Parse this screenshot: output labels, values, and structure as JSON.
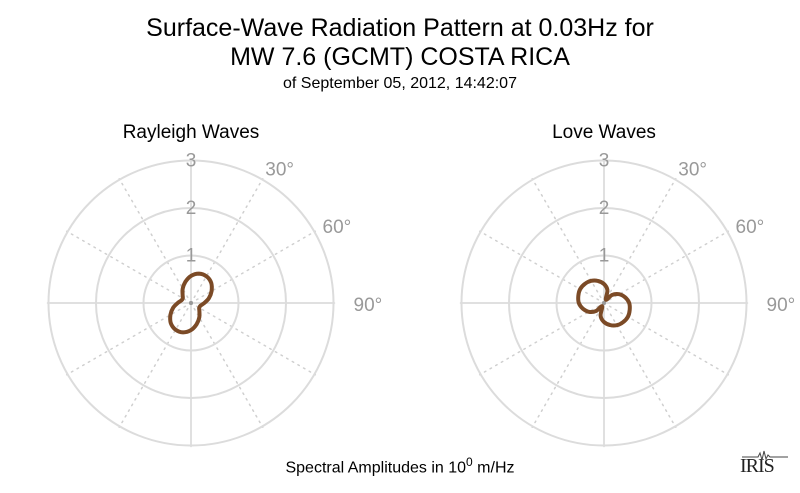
{
  "title_line1": "Surface-Wave Radiation Pattern at 0.03Hz for",
  "title_line2": "MW 7.6 (GCMT) COSTA RICA",
  "subtitle": "of September 05, 2012, 14:42:07",
  "footer_prefix": "Spectral Amplitudes in 10",
  "footer_exp": "0",
  "footer_suffix": " m/Hz",
  "logo_text": "IRIS",
  "chart_data": [
    {
      "type": "polar-line",
      "title": "Rayleigh Waves",
      "radial_ticks": [
        "1",
        "2",
        "3"
      ],
      "rlim": [
        0,
        3
      ],
      "angle_ticks": [
        "30°",
        "60°",
        "90°"
      ],
      "angle_zero": "top",
      "angle_direction": "clockwise",
      "grid": true,
      "color": "#7b4a26",
      "azimuth_deg": [
        0,
        15,
        30,
        45,
        60,
        75,
        90,
        105,
        120,
        135,
        150,
        165,
        180,
        195,
        210,
        225,
        240,
        255,
        270,
        285,
        300,
        315,
        330,
        345
      ],
      "amplitude": [
        0.57,
        0.64,
        0.65,
        0.6,
        0.5,
        0.39,
        0.28,
        0.21,
        0.2,
        0.25,
        0.35,
        0.46,
        0.57,
        0.64,
        0.65,
        0.6,
        0.5,
        0.39,
        0.28,
        0.21,
        0.2,
        0.25,
        0.35,
        0.46
      ]
    },
    {
      "type": "polar-line",
      "title": "Love Waves",
      "radial_ticks": [
        "1",
        "2",
        "3"
      ],
      "rlim": [
        0,
        3
      ],
      "angle_ticks": [
        "30°",
        "60°",
        "90°"
      ],
      "angle_zero": "top",
      "angle_direction": "clockwise",
      "grid": true,
      "color": "#7b4a26",
      "azimuth_deg": [
        0,
        15,
        30,
        45,
        60,
        75,
        90,
        105,
        120,
        135,
        150,
        165,
        180,
        195,
        210,
        225,
        240,
        255,
        270,
        285,
        300,
        315,
        330,
        345
      ],
      "amplitude": [
        0.4,
        0.28,
        0.08,
        0.24,
        0.37,
        0.46,
        0.53,
        0.56,
        0.58,
        0.57,
        0.54,
        0.48,
        0.4,
        0.28,
        0.08,
        0.24,
        0.37,
        0.46,
        0.53,
        0.56,
        0.58,
        0.57,
        0.54,
        0.48
      ]
    }
  ]
}
